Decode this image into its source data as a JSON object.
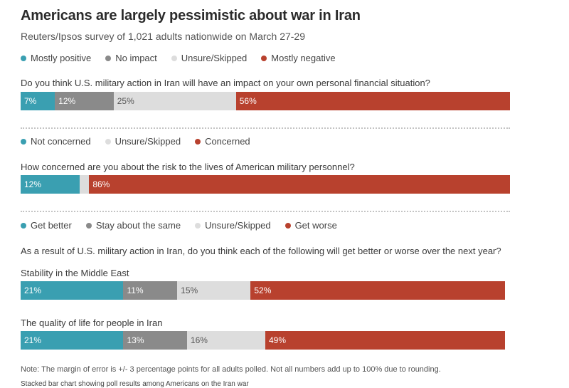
{
  "title": "Americans are largely pessimistic about war in Iran",
  "subtitle": "Reuters/Ipsos survey of 1,021 adults nationwide on March 27-29",
  "colors": {
    "teal": "#3a9fb1",
    "gray": "#8a8a8a",
    "light": "#dddddd",
    "red": "#b8412e"
  },
  "sections": [
    {
      "legend": [
        {
          "label": "Mostly positive",
          "color": "#3a9fb1"
        },
        {
          "label": "No impact",
          "color": "#8a8a8a"
        },
        {
          "label": "Unsure/Skipped",
          "color": "#dddddd"
        },
        {
          "label": "Mostly negative",
          "color": "#b8412e"
        }
      ],
      "question": "Do you think U.S. military action in Iran will have an impact on your own personal financial situation?"
    },
    {
      "legend": [
        {
          "label": "Not concerned",
          "color": "#3a9fb1"
        },
        {
          "label": "Unsure/Skipped",
          "color": "#dddddd"
        },
        {
          "label": "Concerned",
          "color": "#b8412e"
        }
      ],
      "question": "How concerned are you about the risk to the lives of American military personnel?"
    },
    {
      "legend": [
        {
          "label": "Get better",
          "color": "#3a9fb1"
        },
        {
          "label": "Stay about the same",
          "color": "#8a8a8a"
        },
        {
          "label": "Unsure/Skipped",
          "color": "#dddddd"
        },
        {
          "label": "Get worse",
          "color": "#b8412e"
        }
      ],
      "question": "As a result of U.S. military action in Iran, do you think each of the following will get better or worse over the next year?",
      "sublabels": [
        "Stability in the Middle East",
        "The quality of life for people in Iran"
      ]
    }
  ],
  "note": "Note:  The margin of error is +/- 3 percentage points for all adults polled. Not all numbers add up to 100% due to rounding.",
  "alt_text": "Stacked bar chart showing poll results among Americans on the Iran war",
  "chart_data": [
    {
      "type": "bar",
      "stacked": true,
      "orientation": "horizontal",
      "category": "Do you think U.S. military action in Iran will have an impact on your own personal financial situation?",
      "series": [
        {
          "name": "Mostly positive",
          "value": 7,
          "label": "7%",
          "color": "#3a9fb1",
          "label_color": "#ffffff"
        },
        {
          "name": "No impact",
          "value": 12,
          "label": "12%",
          "color": "#8a8a8a",
          "label_color": "#ffffff"
        },
        {
          "name": "Unsure/Skipped",
          "value": 25,
          "label": "25%",
          "color": "#dddddd",
          "label_color": "#555555"
        },
        {
          "name": "Mostly negative",
          "value": 56,
          "label": "56%",
          "color": "#b8412e",
          "label_color": "#ffffff"
        }
      ]
    },
    {
      "type": "bar",
      "stacked": true,
      "orientation": "horizontal",
      "category": "How concerned are you about the risk to the lives of American military personnel?",
      "series": [
        {
          "name": "Not concerned",
          "value": 12,
          "label": "12%",
          "color": "#3a9fb1",
          "label_color": "#ffffff"
        },
        {
          "name": "Unsure/Skipped",
          "value": 2,
          "label": "",
          "color": "#dddddd",
          "label_color": "#555555"
        },
        {
          "name": "Concerned",
          "value": 86,
          "label": "86%",
          "color": "#b8412e",
          "label_color": "#ffffff"
        }
      ]
    },
    {
      "type": "bar",
      "stacked": true,
      "orientation": "horizontal",
      "category": "Stability in the Middle East",
      "series": [
        {
          "name": "Get better",
          "value": 21,
          "label": "21%",
          "color": "#3a9fb1",
          "label_color": "#ffffff"
        },
        {
          "name": "Stay about the same",
          "value": 11,
          "label": "11%",
          "color": "#8a8a8a",
          "label_color": "#ffffff"
        },
        {
          "name": "Unsure/Skipped",
          "value": 15,
          "label": "15%",
          "color": "#dddddd",
          "label_color": "#555555"
        },
        {
          "name": "Get worse",
          "value": 52,
          "label": "52%",
          "color": "#b8412e",
          "label_color": "#ffffff"
        }
      ]
    },
    {
      "type": "bar",
      "stacked": true,
      "orientation": "horizontal",
      "category": "The quality of life for people in Iran",
      "series": [
        {
          "name": "Get better",
          "value": 21,
          "label": "21%",
          "color": "#3a9fb1",
          "label_color": "#ffffff"
        },
        {
          "name": "Stay about the same",
          "value": 13,
          "label": "13%",
          "color": "#8a8a8a",
          "label_color": "#ffffff"
        },
        {
          "name": "Unsure/Skipped",
          "value": 16,
          "label": "16%",
          "color": "#dddddd",
          "label_color": "#555555"
        },
        {
          "name": "Get worse",
          "value": 49,
          "label": "49%",
          "color": "#b8412e",
          "label_color": "#ffffff"
        }
      ]
    }
  ]
}
